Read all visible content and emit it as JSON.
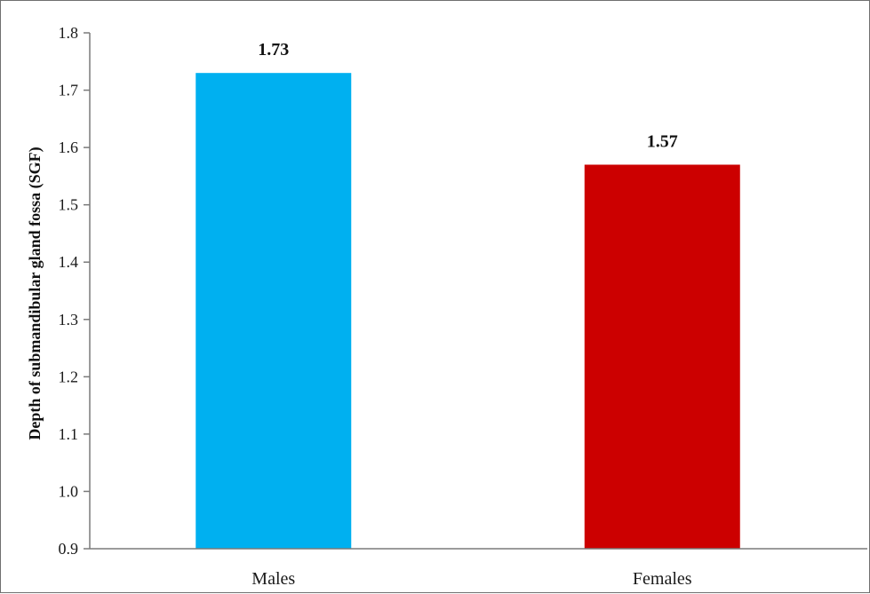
{
  "chart_data": {
    "type": "bar",
    "categories": [
      "Males",
      "Females"
    ],
    "values": [
      1.73,
      1.57
    ],
    "value_labels": [
      "1.73",
      "1.57"
    ],
    "colors": [
      "#00b0f0",
      "#cc0000"
    ],
    "title": "",
    "xlabel": "",
    "ylabel": "Depth of submandibular gland fossa (SGF)",
    "ylim": [
      0.9,
      1.8
    ],
    "yticks": [
      "0.9",
      "1.0",
      "1.1",
      "1.2",
      "1.3",
      "1.4",
      "1.5",
      "1.6",
      "1.7",
      "1.8"
    ],
    "grid": false,
    "legend": "none"
  }
}
